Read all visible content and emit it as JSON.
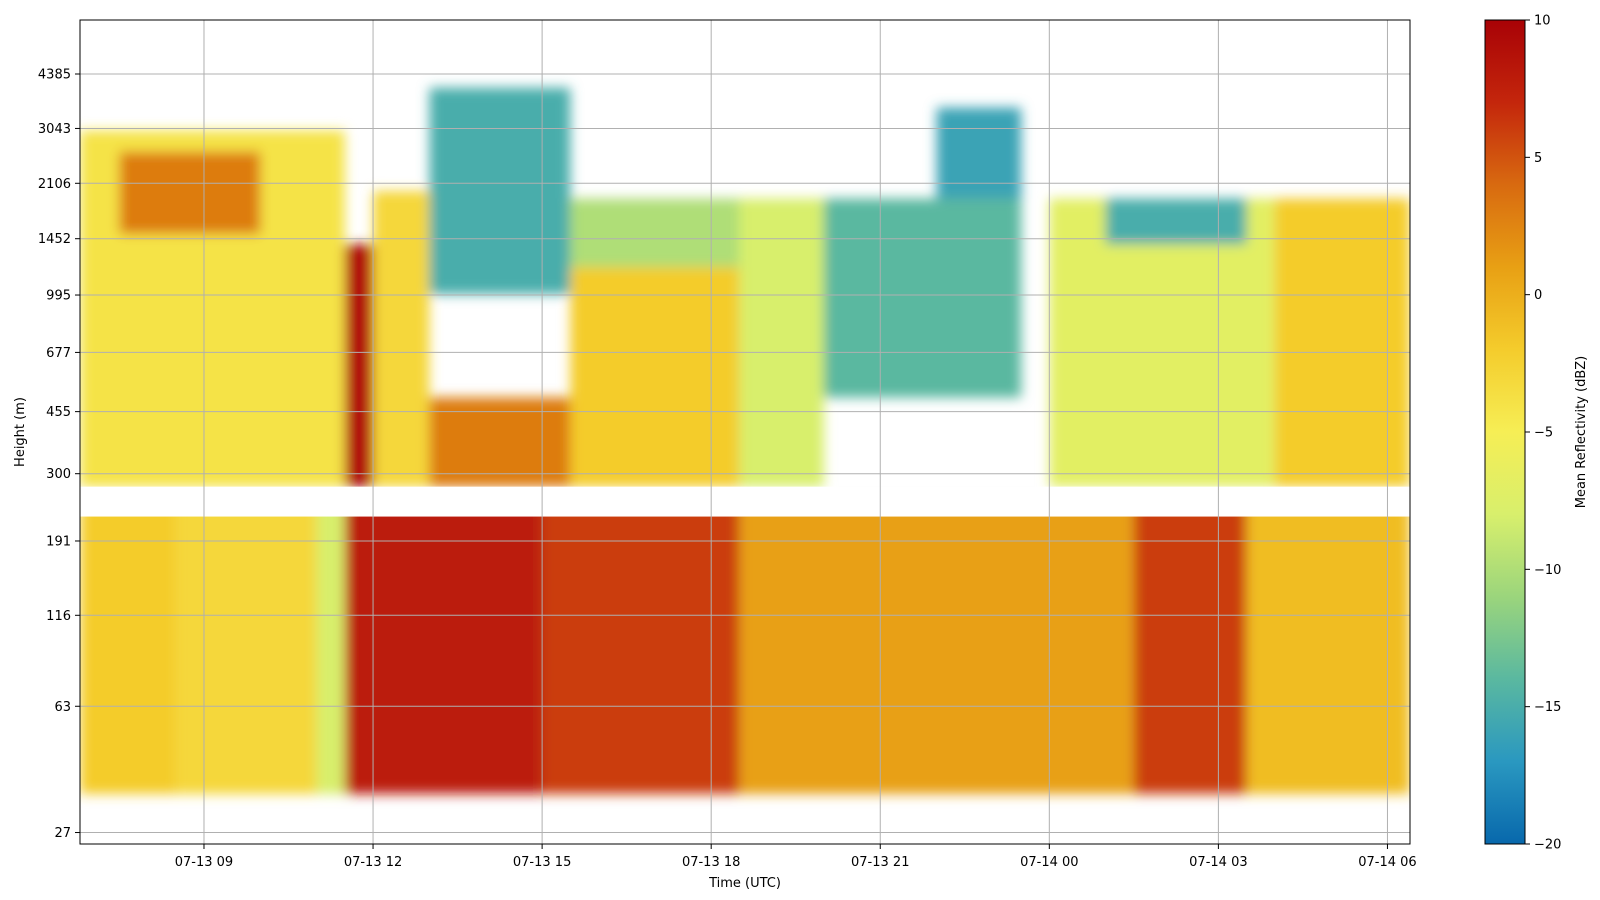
{
  "chart_data": {
    "type": "heatmap",
    "title": "",
    "xlabel": "Time (UTC)",
    "ylabel": "Height (m)",
    "x_tick_labels": [
      "07-13 09",
      "07-13 12",
      "07-13 15",
      "07-13 18",
      "07-13 21",
      "07-14 00",
      "07-14 03",
      "07-14 06"
    ],
    "x_range": [
      "07-13 06:48",
      "07-14 06:24"
    ],
    "y_scale": "log",
    "y_tick_labels": [
      "27",
      "63",
      "116",
      "191",
      "300",
      "455",
      "677",
      "995",
      "1452",
      "2106",
      "3043",
      "4385"
    ],
    "y_range": [
      25,
      6300
    ],
    "grid": true,
    "colorbar": {
      "label": "Mean Reflectivity (dBZ)",
      "range": [
        -20,
        10
      ],
      "tick_labels": [
        "10",
        "5",
        "0",
        "−5",
        "−10",
        "−15",
        "−20"
      ],
      "colormap": [
        "#0868ac",
        "#2a98c0",
        "#5ab8a0",
        "#9bd57c",
        "#d8ef6c",
        "#f6ee55",
        "#f4cc2c",
        "#e8a014",
        "#d86a10",
        "#c4260c",
        "#a80206"
      ]
    },
    "missing_data_gap_height_range": [
      225,
      275
    ],
    "regions_dbz": [
      {
        "start": "07-13 06:48",
        "end": "07-13 08:30",
        "height_range": [
          35,
          250
        ],
        "dbz": -2
      },
      {
        "start": "07-13 08:30",
        "end": "07-13 11:00",
        "height_range": [
          35,
          250
        ],
        "dbz": -3
      },
      {
        "start": "07-13 11:00",
        "end": "07-13 11:30",
        "height_range": [
          35,
          250
        ],
        "dbz": -8
      },
      {
        "start": "07-13 11:30",
        "end": "07-13 15:00",
        "height_range": [
          35,
          250
        ],
        "dbz": 8
      },
      {
        "start": "07-13 15:00",
        "end": "07-13 18:30",
        "height_range": [
          35,
          250
        ],
        "dbz": 6
      },
      {
        "start": "07-13 18:30",
        "end": "07-14 01:30",
        "height_range": [
          35,
          250
        ],
        "dbz": 1
      },
      {
        "start": "07-14 01:30",
        "end": "07-14 03:30",
        "height_range": [
          35,
          250
        ],
        "dbz": 6
      },
      {
        "start": "07-14 03:30",
        "end": "07-14 06:24",
        "height_range": [
          35,
          250
        ],
        "dbz": -1
      },
      {
        "start": "07-13 06:48",
        "end": "07-13 11:30",
        "height_range": [
          275,
          3000
        ],
        "dbz": -4
      },
      {
        "start": "07-13 07:30",
        "end": "07-13 10:00",
        "height_range": [
          1500,
          2600
        ],
        "dbz": 3
      },
      {
        "start": "07-13 11:30",
        "end": "07-13 12:00",
        "height_range": [
          275,
          1400
        ],
        "dbz": 9
      },
      {
        "start": "07-13 12:00",
        "end": "07-13 13:00",
        "height_range": [
          275,
          2000
        ],
        "dbz": -3
      },
      {
        "start": "07-13 13:00",
        "end": "07-13 15:30",
        "height_range": [
          1000,
          4000
        ],
        "dbz": -15
      },
      {
        "start": "07-13 13:00",
        "end": "07-13 15:30",
        "height_range": [
          275,
          500
        ],
        "dbz": 3
      },
      {
        "start": "07-13 15:30",
        "end": "07-13 18:30",
        "height_range": [
          275,
          1200
        ],
        "dbz": -2
      },
      {
        "start": "07-13 15:30",
        "end": "07-13 18:30",
        "height_range": [
          1200,
          1900
        ],
        "dbz": -10
      },
      {
        "start": "07-13 18:30",
        "end": "07-13 20:00",
        "height_range": [
          275,
          1900
        ],
        "dbz": -8
      },
      {
        "start": "07-13 20:00",
        "end": "07-13 23:30",
        "height_range": [
          500,
          1900
        ],
        "dbz": -14
      },
      {
        "start": "07-13 22:00",
        "end": "07-13 23:30",
        "height_range": [
          1900,
          3500
        ],
        "dbz": -16
      },
      {
        "start": "07-14 00:00",
        "end": "07-14 04:00",
        "height_range": [
          275,
          1900
        ],
        "dbz": -7
      },
      {
        "start": "07-14 01:00",
        "end": "07-14 03:30",
        "height_range": [
          1400,
          1900
        ],
        "dbz": -15
      },
      {
        "start": "07-14 04:00",
        "end": "07-14 06:24",
        "height_range": [
          275,
          1900
        ],
        "dbz": -2
      }
    ]
  }
}
